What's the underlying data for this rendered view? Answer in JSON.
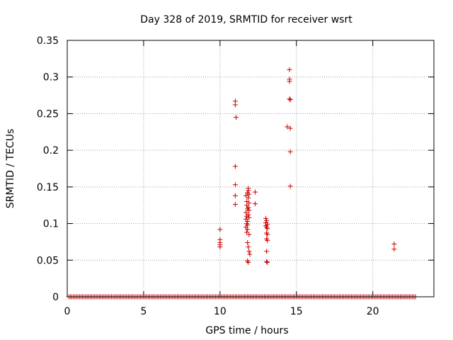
{
  "chart_data": {
    "type": "scatter",
    "title": "Day 328 of 2019, SRMTID for receiver wsrt",
    "xlabel": "GPS time / hours",
    "ylabel": "SRMTID / TECUs",
    "xlim": [
      0,
      24
    ],
    "ylim": [
      0,
      0.35
    ],
    "xticks": [
      0,
      5,
      10,
      15,
      20
    ],
    "xtick_labels": [
      "0",
      "5",
      "10",
      "15",
      "20"
    ],
    "yticks": [
      0,
      0.05,
      0.1,
      0.15,
      0.2,
      0.25,
      0.3,
      0.35
    ],
    "ytick_labels": [
      "0",
      "0.05",
      "0.1",
      "0.15",
      "0.2",
      "0.25",
      "0.3",
      "0.35"
    ],
    "grid": true,
    "marker": "+",
    "colors": {
      "series": "#cc0000",
      "grid": "#a0a0a0",
      "axis": "#000000"
    },
    "zero_baseline": {
      "x_start": 0.1,
      "x_end": 22.8,
      "step": 0.1,
      "y": 0
    },
    "series": [
      {
        "name": "SRMTID",
        "points": [
          [
            10.0,
            0.092
          ],
          [
            10.0,
            0.078
          ],
          [
            10.0,
            0.074
          ],
          [
            10.0,
            0.071
          ],
          [
            10.0,
            0.068
          ],
          [
            11.0,
            0.267
          ],
          [
            11.0,
            0.262
          ],
          [
            11.05,
            0.245
          ],
          [
            11.0,
            0.178
          ],
          [
            11.0,
            0.153
          ],
          [
            11.0,
            0.138
          ],
          [
            11.0,
            0.126
          ],
          [
            11.7,
            0.138
          ],
          [
            11.75,
            0.13
          ],
          [
            11.75,
            0.125
          ],
          [
            11.8,
            0.12
          ],
          [
            11.7,
            0.115
          ],
          [
            11.75,
            0.11
          ],
          [
            11.7,
            0.106
          ],
          [
            11.8,
            0.103
          ],
          [
            11.75,
            0.1
          ],
          [
            11.8,
            0.098
          ],
          [
            11.7,
            0.095
          ],
          [
            11.8,
            0.092
          ],
          [
            11.75,
            0.088
          ],
          [
            11.9,
            0.085
          ],
          [
            11.85,
            0.148
          ],
          [
            11.85,
            0.145
          ],
          [
            11.8,
            0.142
          ],
          [
            11.9,
            0.14
          ],
          [
            11.85,
            0.135
          ],
          [
            11.9,
            0.128
          ],
          [
            11.85,
            0.122
          ],
          [
            11.9,
            0.118
          ],
          [
            11.85,
            0.112
          ],
          [
            11.9,
            0.108
          ],
          [
            11.8,
            0.074
          ],
          [
            11.85,
            0.068
          ],
          [
            11.9,
            0.062
          ],
          [
            11.95,
            0.058
          ],
          [
            11.8,
            0.049
          ],
          [
            11.85,
            0.047
          ],
          [
            12.3,
            0.143
          ],
          [
            12.3,
            0.127
          ],
          [
            13.0,
            0.107
          ],
          [
            13.05,
            0.104
          ],
          [
            13.0,
            0.101
          ],
          [
            13.1,
            0.099
          ],
          [
            13.0,
            0.097
          ],
          [
            13.05,
            0.095
          ],
          [
            13.1,
            0.093
          ],
          [
            13.05,
            0.087
          ],
          [
            13.1,
            0.085
          ],
          [
            13.05,
            0.079
          ],
          [
            13.1,
            0.077
          ],
          [
            13.05,
            0.062
          ],
          [
            13.05,
            0.048
          ],
          [
            13.1,
            0.047
          ],
          [
            14.4,
            0.232
          ],
          [
            14.55,
            0.31
          ],
          [
            14.55,
            0.297
          ],
          [
            14.55,
            0.294
          ],
          [
            14.55,
            0.27
          ],
          [
            14.6,
            0.269
          ],
          [
            14.6,
            0.23
          ],
          [
            14.6,
            0.198
          ],
          [
            14.6,
            0.151
          ],
          [
            21.4,
            0.072
          ],
          [
            21.4,
            0.065
          ]
        ]
      }
    ]
  }
}
